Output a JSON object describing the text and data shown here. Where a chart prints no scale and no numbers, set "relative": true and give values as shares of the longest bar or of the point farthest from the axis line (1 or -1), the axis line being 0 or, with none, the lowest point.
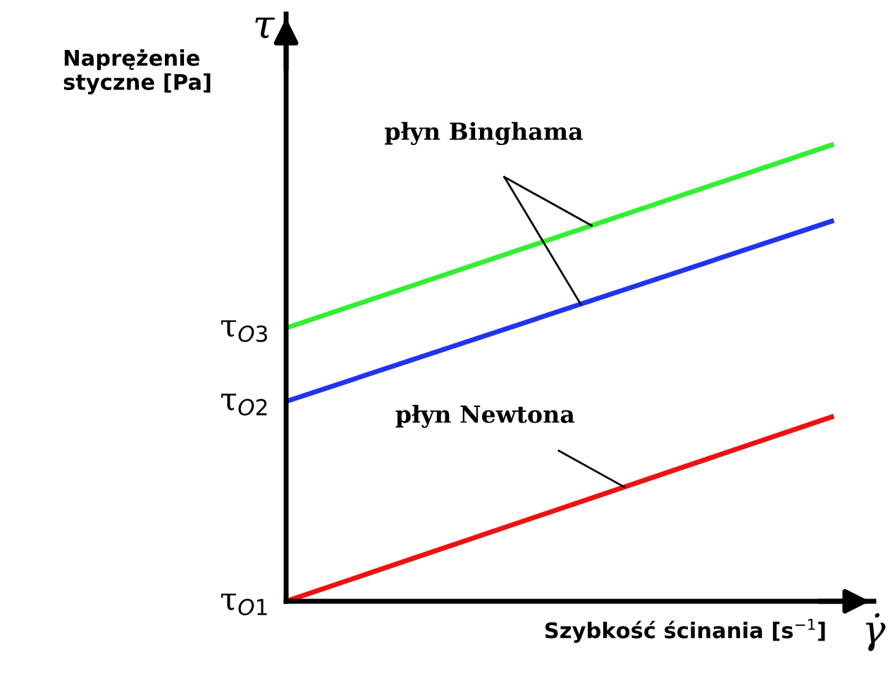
{
  "chart_data": {
    "type": "line",
    "relative": true,
    "categories": [
      null,
      null
    ],
    "ylabel": "Naprężenie\nstyczne [Pa]",
    "xlabel": "Szybkość ścinania [s$^{−1}$]",
    "series": [
      {
        "color": "#33ee33",
        "values": [
          0.599,
          1.0
        ]
      },
      {
        "color": "#2233ee",
        "values": [
          0.438,
          0.833
        ]
      },
      {
        "color": "#ee1111",
        "values": [
          0,
          0.404
        ]
      }
    ],
    "annotations": [
      "płyn Binghama",
      "płyn Newtona",
      "τ",
      "γ̇",
      "τ$_{O3}$",
      "τ$_{O2}$",
      "τ$_{O1}$"
    ],
    "grid": false,
    "legend": false,
    "marker": "none",
    "line_style": "solid"
  }
}
